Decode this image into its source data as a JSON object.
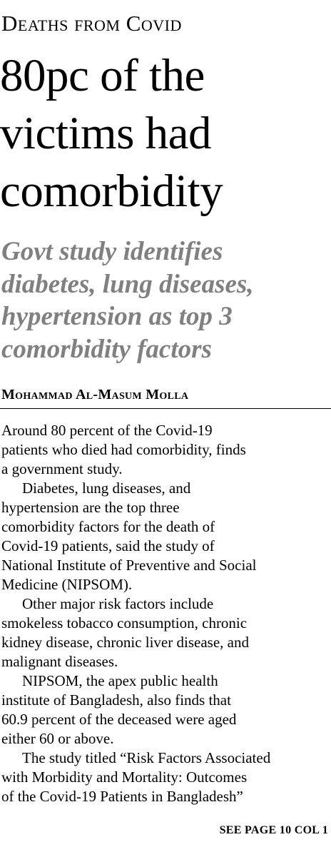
{
  "kicker": "Deaths from Covid",
  "headline": {
    "lines": [
      "80pc of the",
      "victims had",
      "comorbidity"
    ]
  },
  "subhead": {
    "lines": [
      "Govt study identifies",
      "diabetes, lung diseases,",
      "hypertension as top 3",
      "comorbidity factors"
    ]
  },
  "byline": "Mohammad Al-Masum Molla",
  "body": {
    "paragraphs": [
      {
        "lines": [
          "Around 80 percent of the Covid-19",
          "patients who died had comorbidity, finds",
          "a government study."
        ]
      },
      {
        "lines": [
          "Diabetes, lung diseases, and",
          "hypertension are the top three",
          "comorbidity factors for the death of",
          "Covid-19 patients, said the study of",
          "National Institute of Preventive and Social",
          "Medicine (NIPSOM)."
        ]
      },
      {
        "lines": [
          "Other major risk factors include",
          "smokeless tobacco consumption, chronic",
          "kidney disease, chronic liver disease, and",
          "malignant diseases."
        ]
      },
      {
        "lines": [
          "NIPSOM, the apex public health",
          "institute of Bangladesh, also finds that",
          "60.9 percent of the deceased were aged",
          "either 60 or above."
        ]
      },
      {
        "lines": [
          "The study titled “Risk Factors Associated",
          "with Morbidity and Mortality: Outcomes",
          "of the Covid-19 Patients in Bangladesh”"
        ]
      }
    ]
  },
  "jump": "SEE PAGE 10 COL 1"
}
